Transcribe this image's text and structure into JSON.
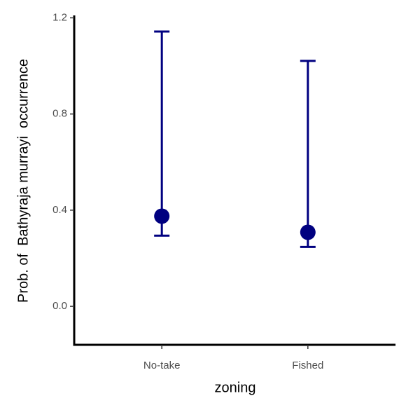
{
  "chart_data": {
    "type": "pointrange",
    "x_label": "zoning",
    "y_label": "Prob. of  Bathyraja murrayi  occurrence",
    "categories": [
      "No-take",
      "Fished"
    ],
    "values": [
      0.375,
      0.308
    ],
    "lower": [
      0.294,
      0.247
    ],
    "upper": [
      1.143,
      1.021
    ],
    "color": "#000080",
    "ylim": [
      -0.16,
      1.21
    ],
    "yticks": [
      {
        "value": 0,
        "label": "0.0"
      },
      0.4,
      0.8,
      1.2
    ],
    "grid": false
  }
}
